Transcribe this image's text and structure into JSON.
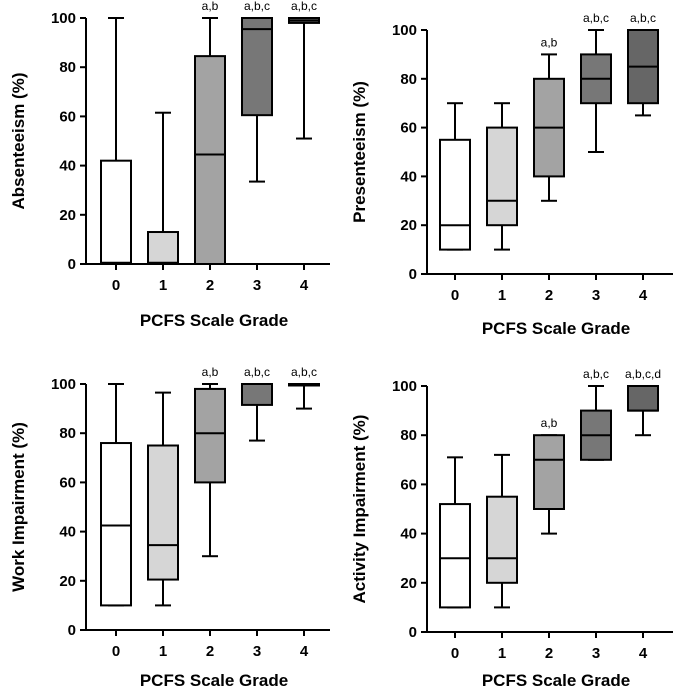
{
  "chart_data": [
    {
      "type": "boxplot",
      "title": "",
      "xlabel": "PCFS Scale Grade",
      "ylabel": "Absenteeism (%)",
      "ylim": [
        0,
        100
      ],
      "yticks": [
        0,
        20,
        40,
        60,
        80,
        100
      ],
      "categories": [
        "0",
        "1",
        "2",
        "3",
        "4"
      ],
      "boxes": [
        {
          "min": 0,
          "q1": 0,
          "median": 0.5,
          "q3": 42,
          "max": 100,
          "fill": "#ffffff",
          "sig": ""
        },
        {
          "min": 0,
          "q1": 0,
          "median": 0.5,
          "q3": 13,
          "max": 61.5,
          "fill": "#d6d6d6",
          "sig": ""
        },
        {
          "min": 0,
          "q1": 0,
          "median": 44.5,
          "q3": 84.5,
          "max": 100,
          "fill": "#a3a3a3",
          "sig": "a,b"
        },
        {
          "min": 33.5,
          "q1": 60.5,
          "median": 95.5,
          "q3": 100,
          "max": 100,
          "fill": "#777777",
          "sig": "a,b,c"
        },
        {
          "min": 51,
          "q1": 98,
          "median": 99,
          "q3": 100,
          "max": 100,
          "fill": "#666666",
          "sig": "a,b,c"
        }
      ]
    },
    {
      "type": "boxplot",
      "title": "",
      "xlabel": "PCFS Scale Grade",
      "ylabel": "Presenteeism (%)",
      "ylim": [
        0,
        100
      ],
      "yticks": [
        0,
        20,
        40,
        60,
        80,
        100
      ],
      "categories": [
        "0",
        "1",
        "2",
        "3",
        "4"
      ],
      "boxes": [
        {
          "min": 10,
          "q1": 10,
          "median": 20,
          "q3": 55,
          "max": 70,
          "fill": "#ffffff",
          "sig": ""
        },
        {
          "min": 10,
          "q1": 20,
          "median": 30,
          "q3": 60,
          "max": 70,
          "fill": "#d6d6d6",
          "sig": ""
        },
        {
          "min": 30,
          "q1": 40,
          "median": 60,
          "q3": 80,
          "max": 90,
          "fill": "#a3a3a3",
          "sig": "a,b"
        },
        {
          "min": 50,
          "q1": 70,
          "median": 80,
          "q3": 90,
          "max": 100,
          "fill": "#777777",
          "sig": "a,b,c"
        },
        {
          "min": 65,
          "q1": 70,
          "median": 85,
          "q3": 100,
          "max": 100,
          "fill": "#666666",
          "sig": "a,b,c"
        }
      ]
    },
    {
      "type": "boxplot",
      "title": "",
      "xlabel": "PCFS Scale Grade",
      "ylabel": "Work Impairment (%)",
      "ylim": [
        0,
        100
      ],
      "yticks": [
        0,
        20,
        40,
        60,
        80,
        100
      ],
      "categories": [
        "0",
        "1",
        "2",
        "3",
        "4"
      ],
      "boxes": [
        {
          "min": 10,
          "q1": 10,
          "median": 42.5,
          "q3": 76,
          "max": 100,
          "fill": "#ffffff",
          "sig": ""
        },
        {
          "min": 10,
          "q1": 20.5,
          "median": 34.5,
          "q3": 75,
          "max": 96.5,
          "fill": "#d6d6d6",
          "sig": ""
        },
        {
          "min": 30,
          "q1": 60,
          "median": 80,
          "q3": 98,
          "max": 100,
          "fill": "#a3a3a3",
          "sig": "a,b"
        },
        {
          "min": 77,
          "q1": 91.5,
          "median": 100,
          "q3": 100,
          "max": 100,
          "fill": "#777777",
          "sig": "a,b,c"
        },
        {
          "min": 90,
          "q1": 100,
          "median": 100,
          "q3": 100,
          "max": 100,
          "fill": "#666666",
          "sig": "a,b,c"
        }
      ]
    },
    {
      "type": "boxplot",
      "title": "",
      "xlabel": "PCFS Scale Grade",
      "ylabel": "Activity Impairment (%)",
      "ylim": [
        0,
        100
      ],
      "yticks": [
        0,
        20,
        40,
        60,
        80,
        100
      ],
      "categories": [
        "0",
        "1",
        "2",
        "3",
        "4"
      ],
      "boxes": [
        {
          "min": 10,
          "q1": 10,
          "median": 30,
          "q3": 52,
          "max": 71,
          "fill": "#ffffff",
          "sig": ""
        },
        {
          "min": 10,
          "q1": 20,
          "median": 30,
          "q3": 55,
          "max": 72,
          "fill": "#d6d6d6",
          "sig": ""
        },
        {
          "min": 40,
          "q1": 50,
          "median": 70,
          "q3": 80,
          "max": 80,
          "fill": "#a3a3a3",
          "sig": "a,b"
        },
        {
          "min": 70,
          "q1": 70,
          "median": 80,
          "q3": 90,
          "max": 100,
          "fill": "#777777",
          "sig": "a,b,c"
        },
        {
          "min": 80,
          "q1": 90,
          "median": 90,
          "q3": 100,
          "max": 100,
          "fill": "#666666",
          "sig": "a,b,c,d"
        }
      ]
    }
  ]
}
